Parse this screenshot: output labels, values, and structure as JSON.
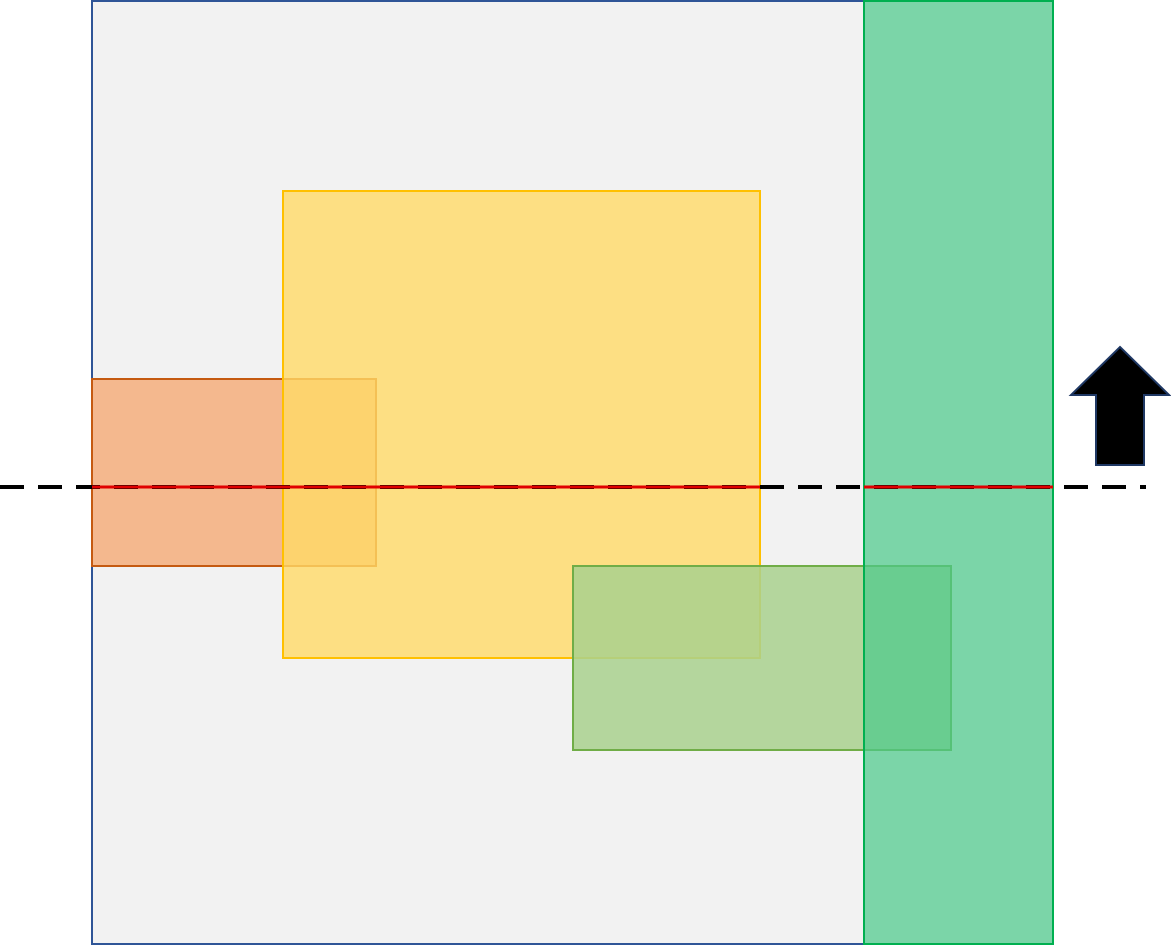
{
  "diagram": {
    "description_colors": {
      "canvas_fill": "#f2f2f2",
      "canvas_stroke": "#2f5597",
      "orange_fill": "#f4b183",
      "orange_stroke": "#c55a11",
      "yellow_fill": "#ffd966",
      "yellow_stroke": "#ffc000",
      "light_green_fill": "#a9d18e",
      "light_green_stroke": "#70ad47",
      "green_fill": "#4cc98a",
      "green_stroke": "#00b050",
      "sweep_line": "#000000",
      "intersection": "#e00000",
      "arrow_fill": "#000000",
      "arrow_stroke": "#1f3864"
    },
    "icons": {
      "arrow": "up-arrow-icon"
    }
  }
}
